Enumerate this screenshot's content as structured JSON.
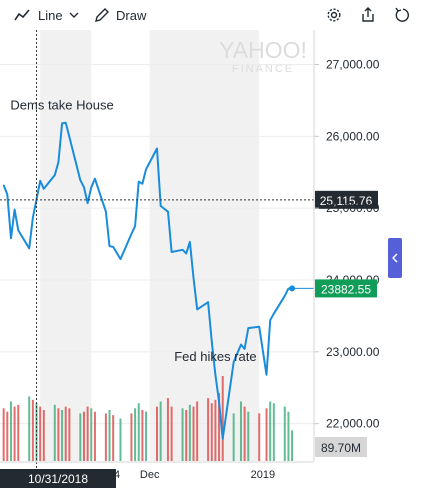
{
  "toolbar": {
    "chart_type_label": "Line",
    "draw_label": "Draw",
    "icons": [
      "line-chart-icon",
      "chevron-down-icon",
      "pencil-icon",
      "gear-icon",
      "share-icon",
      "reset-icon"
    ]
  },
  "watermark": {
    "line1": "YAHOO!",
    "line2": "FINANCE"
  },
  "colors": {
    "line": "#1a8cdc",
    "up_volume": "#3cab7a",
    "down_volume": "#d94a48",
    "current_price_bg": "#0f9d58",
    "crosshair_bg": "#232a31",
    "shade": "#f1f1f1",
    "side_tab": "#5560d8"
  },
  "chart_data": {
    "type": "line",
    "y_ticks": [
      "27,000.00",
      "26,000.00",
      "25,000.00",
      "24,000.00",
      "23,000.00",
      "22,000.00"
    ],
    "y_tick_values": [
      27000,
      26000,
      25000,
      24000,
      23000,
      22000
    ],
    "ylim": [
      21480,
      27480
    ],
    "x_ticks": [
      "Dec",
      "2019"
    ],
    "x_tick_values": [
      "2018-12-01",
      "2019-01-01"
    ],
    "x_partial_label": "4",
    "xlim": [
      "2018-10-21",
      "2019-01-15"
    ],
    "series": [
      {
        "x": [
          "2018-10-22",
          "2018-10-23",
          "2018-10-24",
          "2018-10-25",
          "2018-10-26",
          "2018-10-29",
          "2018-10-30",
          "2018-10-31",
          "2018-11-01",
          "2018-11-02",
          "2018-11-05",
          "2018-11-06",
          "2018-11-07",
          "2018-11-08",
          "2018-11-09",
          "2018-11-12",
          "2018-11-13",
          "2018-11-14",
          "2018-11-15",
          "2018-11-16",
          "2018-11-19",
          "2018-11-20",
          "2018-11-21",
          "2018-11-23",
          "2018-11-26",
          "2018-11-27",
          "2018-11-28",
          "2018-11-29",
          "2018-11-30",
          "2018-12-03",
          "2018-12-04",
          "2018-12-06",
          "2018-12-07",
          "2018-12-10",
          "2018-12-11",
          "2018-12-12",
          "2018-12-13",
          "2018-12-14",
          "2018-12-17",
          "2018-12-18",
          "2018-12-19",
          "2018-12-20",
          "2018-12-21",
          "2018-12-24",
          "2018-12-26",
          "2018-12-27",
          "2018-12-28",
          "2018-12-31",
          "2019-01-02",
          "2019-01-03",
          "2019-01-04",
          "2019-01-07",
          "2019-01-08",
          "2019-01-09"
        ],
        "y": [
          25320,
          25190,
          24580,
          24980,
          24690,
          24440,
          24870,
          25120,
          25380,
          25270,
          25460,
          25640,
          26180,
          26190,
          25990,
          25390,
          25290,
          25070,
          25290,
          25410,
          24950,
          24470,
          24460,
          24290,
          24640,
          24750,
          25370,
          25340,
          25540,
          25830,
          25030,
          24950,
          24390,
          24420,
          24370,
          24530,
          24030,
          23590,
          23690,
          23140,
          22680,
          22300,
          21790,
          22860,
          23100,
          23040,
          23330,
          23350,
          22680,
          23440,
          23530,
          23780,
          23880,
          23882.55
        ]
      }
    ],
    "volume": [
      1.55,
      1.45,
      1.75,
      1.6,
      1.65,
      1.9,
      1.8,
      1.7,
      1.6,
      1.5,
      1.65,
      1.55,
      1.5,
      1.6,
      1.55,
      1.4,
      1.45,
      1.6,
      1.55,
      1.45,
      1.4,
      1.5,
      1.35,
      1.25,
      1.4,
      1.55,
      1.7,
      1.5,
      1.45,
      1.6,
      1.75,
      1.85,
      1.6,
      1.55,
      1.5,
      1.65,
      1.6,
      1.75,
      1.85,
      1.7,
      1.8,
      2.0,
      2.5,
      1.4,
      1.75,
      1.6,
      1.45,
      1.4,
      1.55,
      1.75,
      1.7,
      1.6,
      1.45,
      0.9
    ],
    "volume_up": [
      false,
      false,
      true,
      false,
      false,
      true,
      false,
      true,
      false,
      false,
      true,
      false,
      true,
      false,
      false,
      true,
      false,
      false,
      true,
      false,
      false,
      true,
      false,
      true,
      false,
      true,
      true,
      false,
      true,
      false,
      true,
      false,
      false,
      true,
      false,
      true,
      false,
      false,
      false,
      false,
      false,
      false,
      false,
      true,
      true,
      false,
      true,
      false,
      false,
      true,
      true,
      true,
      true,
      true
    ],
    "annotations": [
      {
        "text": "Dems take House",
        "x": "2018-11-07"
      },
      {
        "text": "Fed hikes rate",
        "x": "2018-12-19"
      }
    ],
    "crosshair": {
      "x_label": "10/31/2018",
      "y_label": "25,115.76",
      "x": "2018-10-31",
      "y": 25115.76
    },
    "last_price_label": "23882.55",
    "volume_label": "89.70M",
    "shaded_ranges": [
      [
        "2018-11-01",
        "2018-11-15"
      ],
      [
        "2018-12-01",
        "2018-12-31"
      ]
    ]
  }
}
